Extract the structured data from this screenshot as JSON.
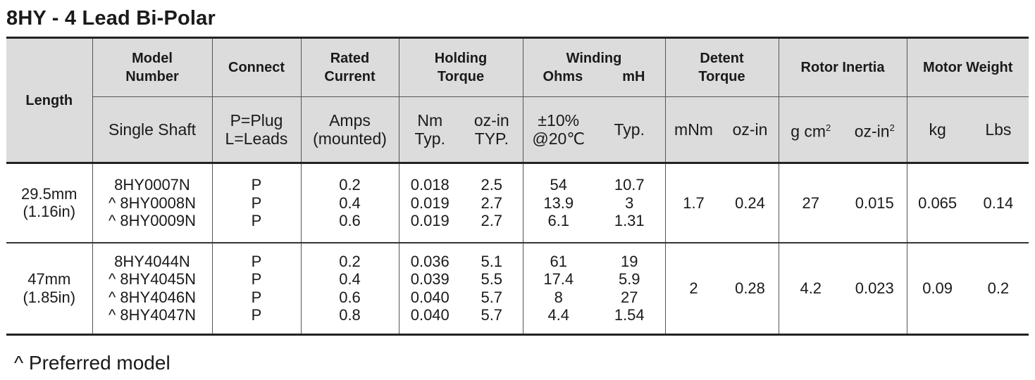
{
  "title": "8HY - 4 Lead Bi-Polar",
  "headers": {
    "length": "Length",
    "model_number": [
      "Model",
      "Number"
    ],
    "connect": "Connect",
    "rated_current": [
      "Rated",
      "Current"
    ],
    "holding_torque": [
      "Holding",
      "Torque"
    ],
    "winding": "Winding",
    "winding_ohms": "Ohms",
    "winding_mh": "mH",
    "detent_torque": [
      "Detent",
      "Torque"
    ],
    "rotor_inertia": "Rotor Inertia",
    "motor_weight": "Motor Weight"
  },
  "subheaders": {
    "model": "Single Shaft",
    "connect": [
      "P=Plug",
      "L=Leads"
    ],
    "current": [
      "Amps",
      "(mounted)"
    ],
    "torque_nm": [
      "Nm",
      "Typ."
    ],
    "torque_ozin": [
      "oz-in",
      "TYP."
    ],
    "ohms": [
      "±10%",
      "@20℃"
    ],
    "mh": "Typ.",
    "detent_mnm": "mNm",
    "detent_ozin": "oz-in",
    "inertia_gcm": "g cm",
    "inertia_ozin": "oz-in",
    "sup2": "2",
    "weight_kg": "kg",
    "weight_lbs": "Lbs"
  },
  "groups": [
    {
      "length": [
        "29.5mm",
        "(1.16in)"
      ],
      "models": [
        "8HY0007N",
        "^ 8HY0008N",
        "^ 8HY0009N"
      ],
      "connect": [
        "P",
        "P",
        "P"
      ],
      "current": [
        "0.2",
        "0.4",
        "0.6"
      ],
      "torque_nm": [
        "0.018",
        "0.019",
        "0.019"
      ],
      "torque_ozin": [
        "2.5",
        "2.7",
        "2.7"
      ],
      "ohms": [
        "54",
        "13.9",
        "6.1"
      ],
      "mh": [
        "10.7",
        "3",
        "1.31"
      ],
      "detent_mnm": "1.7",
      "detent_ozin": "0.24",
      "inertia_gcm": "27",
      "inertia_ozin": "0.015",
      "weight_kg": "0.065",
      "weight_lbs": "0.14"
    },
    {
      "length": [
        "47mm",
        "(1.85in)"
      ],
      "models": [
        "8HY4044N",
        "^ 8HY4045N",
        "^ 8HY4046N",
        "^ 8HY4047N"
      ],
      "connect": [
        "P",
        "P",
        "P",
        "P"
      ],
      "current": [
        "0.2",
        "0.4",
        "0.6",
        "0.8"
      ],
      "torque_nm": [
        "0.036",
        "0.039",
        "0.040",
        "0.040"
      ],
      "torque_ozin": [
        "5.1",
        "5.5",
        "5.7",
        "5.7"
      ],
      "ohms": [
        "61",
        "17.4",
        "8",
        "4.4"
      ],
      "mh": [
        "19",
        "5.9",
        "27",
        "1.54"
      ],
      "detent_mnm": "2",
      "detent_ozin": "0.28",
      "inertia_gcm": "4.2",
      "inertia_ozin": "0.023",
      "weight_kg": "0.09",
      "weight_lbs": "0.2"
    }
  ],
  "footnote": "^ Preferred model"
}
